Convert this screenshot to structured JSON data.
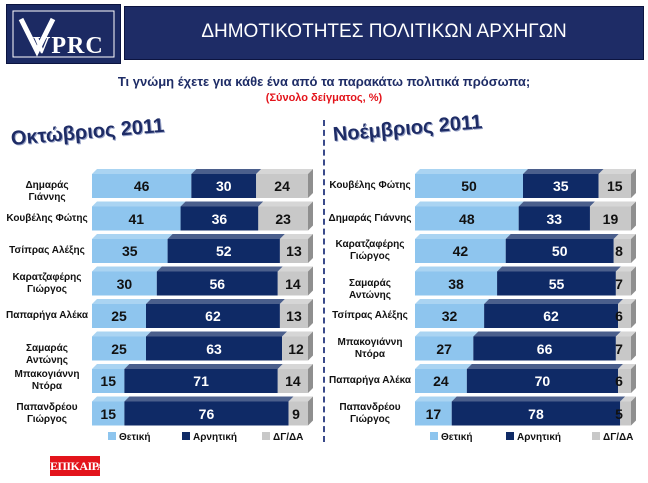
{
  "brand": {
    "logo_text": "VPRC",
    "footer_logo": "ΕΠΙΚΑΙΡΑ"
  },
  "header": {
    "title": "ΔΗΜΟΤΙΚΟΤΗΤΕΣ ΠΟΛΙΤΙΚΩΝ ΑΡΧΗΓΩΝ",
    "question": "Τι γνώμη έχετε για κάθε ένα από τα παρακάτω πολιτικά πρόσωπα;",
    "subtitle": "(Σύνολο δείγματος, %)"
  },
  "colors": {
    "positive": "#8ec5ee",
    "negative": "#0f2a66",
    "dk": "#c8c8c8",
    "accent": "#1e2c66",
    "red": "#e3141b"
  },
  "chart_data": [
    {
      "type": "bar",
      "orientation": "horizontal",
      "stacked": true,
      "title": "Οκτώβριος 2011",
      "categories": [
        "Δημαράς Γιάννης",
        "Κουβέλης Φώτης",
        "Τσίπρας Αλέξης",
        "Καρατζαφέρης Γιώργος",
        "Παπαρήγα Αλέκα",
        "Σαμαράς Αντώνης",
        "Μπακογιάννη Ντόρα",
        "Παπανδρέου Γιώργος"
      ],
      "series": [
        {
          "name": "Θετική",
          "values": [
            46,
            41,
            35,
            30,
            25,
            25,
            15,
            15
          ]
        },
        {
          "name": "Αρνητική",
          "values": [
            30,
            36,
            52,
            56,
            62,
            63,
            71,
            76
          ]
        },
        {
          "name": "ΔΓ/ΔΑ",
          "values": [
            24,
            23,
            13,
            14,
            13,
            12,
            14,
            9
          ]
        }
      ],
      "legend": "bottom"
    },
    {
      "type": "bar",
      "orientation": "horizontal",
      "stacked": true,
      "title": "Νοέμβριος 2011",
      "categories": [
        "Κουβέλης Φώτης",
        "Δημαράς Γιάννης",
        "Καρατζαφέρης Γιώργος",
        "Σαμαράς Αντώνης",
        "Τσίπρας Αλέξης",
        "Μπακογιάννη Ντόρα",
        "Παπαρήγα Αλέκα",
        "Παπανδρέου Γιώργος"
      ],
      "series": [
        {
          "name": "Θετική",
          "values": [
            50,
            48,
            42,
            38,
            32,
            27,
            24,
            17
          ]
        },
        {
          "name": "Αρνητική",
          "values": [
            35,
            33,
            50,
            55,
            62,
            66,
            70,
            78
          ]
        },
        {
          "name": "ΔΓ/ΔΑ",
          "values": [
            15,
            19,
            8,
            7,
            6,
            7,
            6,
            5
          ]
        }
      ],
      "legend": "bottom"
    }
  ]
}
